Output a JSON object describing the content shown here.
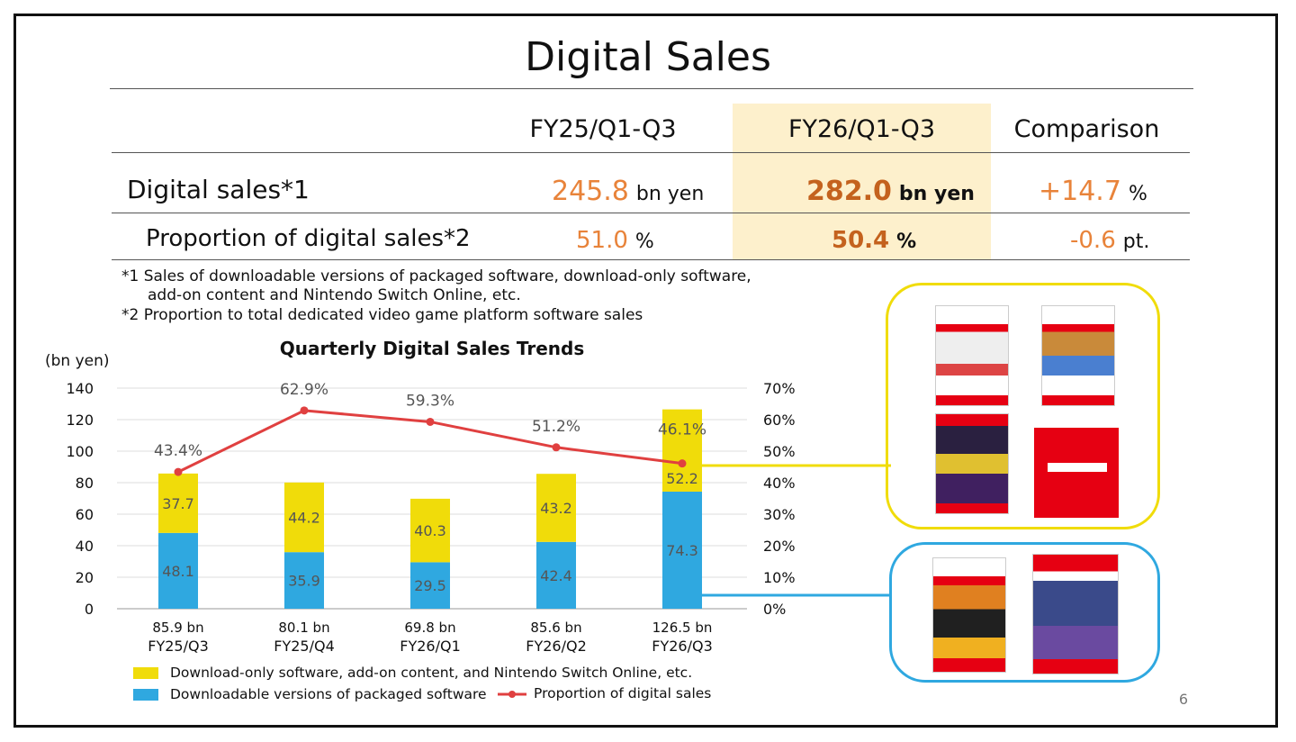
{
  "title": "Digital Sales",
  "table": {
    "headers": [
      "FY25/Q1-Q3",
      "FY26/Q1-Q3",
      "Comparison"
    ],
    "rows": [
      {
        "label": "Digital sales*1",
        "fy25": "245.8",
        "fy25_unit": "bn yen",
        "fy26": "282.0",
        "fy26_unit": "bn yen",
        "comp": "+14.7",
        "comp_unit": "%"
      },
      {
        "label": "Proportion of digital sales*2",
        "fy25": "51.0",
        "fy25_unit": "%",
        "fy26": "50.4",
        "fy26_unit": "%",
        "comp": "-0.6",
        "comp_unit": "pt."
      }
    ]
  },
  "notes": {
    "n1_line1": "*1 Sales of downloadable versions of packaged software, download-only software,",
    "n1_line2": "add-on content and Nintendo Switch Online, etc.",
    "n2": "*2 Proportion to total dedicated video game platform software sales"
  },
  "chart_data": {
    "type": "bar",
    "title": "Quarterly Digital Sales Trends",
    "ylabel": "(bn yen)",
    "ylim": [
      0,
      140
    ],
    "yticks": [
      "0",
      "20",
      "40",
      "60",
      "80",
      "100",
      "120",
      "140"
    ],
    "y2lim": [
      0,
      70
    ],
    "y2ticks": [
      "0%",
      "10%",
      "20%",
      "30%",
      "40%",
      "50%",
      "60%",
      "70%"
    ],
    "categories": [
      "FY25/Q3",
      "FY25/Q4",
      "FY26/Q1",
      "FY26/Q2",
      "FY26/Q3"
    ],
    "totals": [
      "85.9 bn",
      "80.1 bn",
      "69.8 bn",
      "85.6 bn",
      "126.5 bn"
    ],
    "series": [
      {
        "name": "Downloadable versions of packaged software",
        "color": "#2fa8e0",
        "values": [
          48.1,
          35.9,
          29.5,
          42.4,
          74.3
        ],
        "labels": [
          "48.1",
          "35.9",
          "29.5",
          "42.4",
          "74.3"
        ]
      },
      {
        "name": "Download-only software, add-on content, and Nintendo Switch Online, etc.",
        "color": "#f0dc0a",
        "values": [
          37.7,
          44.2,
          40.3,
          43.2,
          52.2
        ],
        "labels": [
          "37.7",
          "44.2",
          "40.3",
          "43.2",
          "52.2"
        ]
      },
      {
        "name": "Proportion of digital sales",
        "color": "#e04040",
        "type": "line",
        "values": [
          43.4,
          62.9,
          59.3,
          51.2,
          46.1
        ],
        "labels": [
          "43.4%",
          "62.9%",
          "59.3%",
          "51.2%",
          "46.1%"
        ]
      }
    ],
    "grid": true,
    "legend_position": "bottom"
  },
  "colors": {
    "yellow_box": "#f0dc0a",
    "blue_box": "#2fa8e0",
    "orange_value": "#e8833a"
  },
  "page_number": "6"
}
